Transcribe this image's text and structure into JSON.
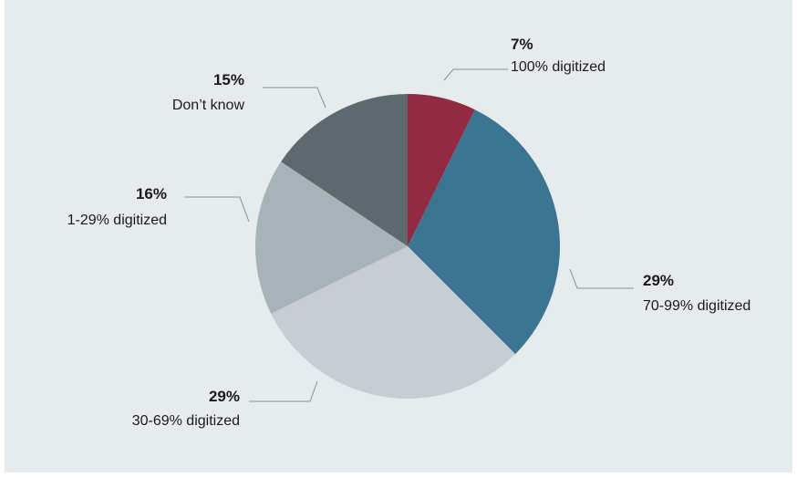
{
  "chart_data": {
    "type": "pie",
    "start": "12 o'clock",
    "direction": "clockwise",
    "slices": [
      {
        "label": "100% digitized",
        "percent_label": "7%",
        "value": 7,
        "color": "#922a41"
      },
      {
        "label": "70-99% digitized",
        "percent_label": "29%",
        "value": 29,
        "color": "#3b7592"
      },
      {
        "label": "30-69% digitized",
        "percent_label": "29%",
        "value": 29,
        "color": "#c6cdd3"
      },
      {
        "label": "1-29% digitized",
        "percent_label": "16%",
        "value": 16,
        "color": "#a8b3b9"
      },
      {
        "label": "Don’t know",
        "percent_label": "15%",
        "value": 15,
        "color": "#5e696f"
      }
    ]
  }
}
